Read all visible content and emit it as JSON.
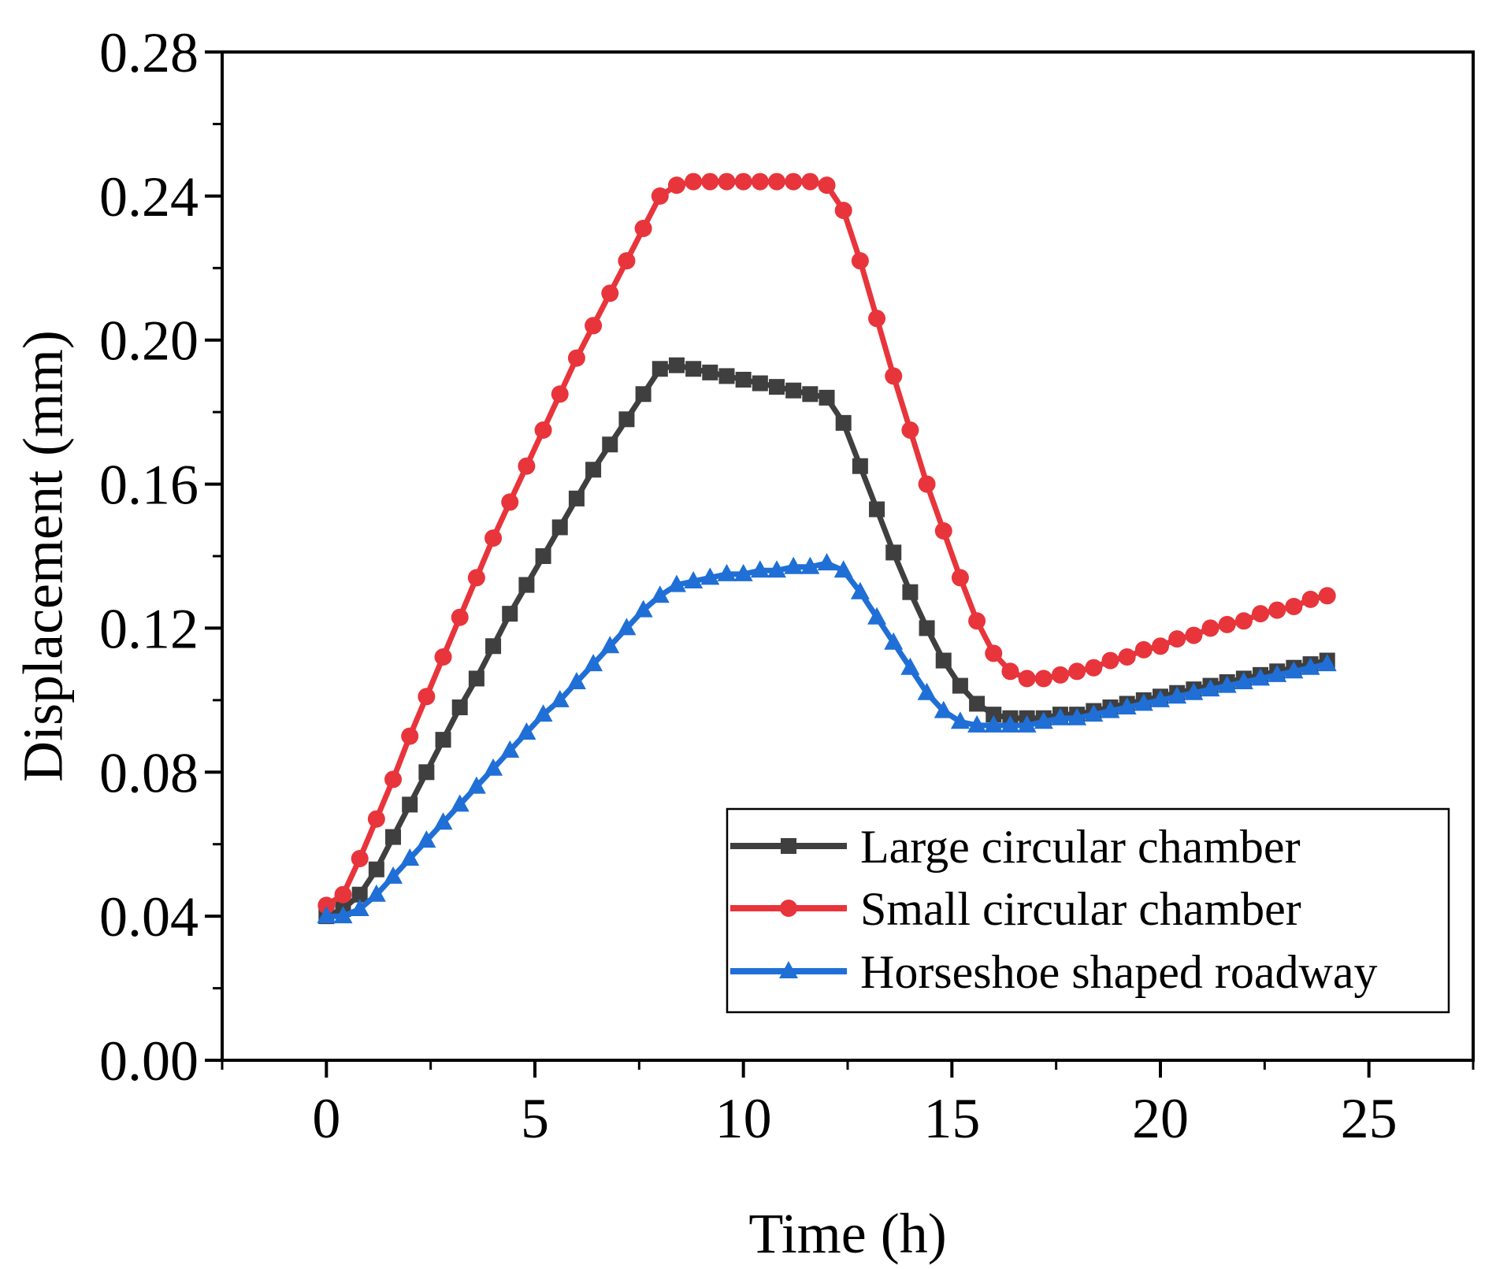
{
  "chart_data": {
    "type": "line",
    "title": "",
    "xlabel": "Time (h)",
    "ylabel": "Displacement (mm)",
    "xlim": [
      -2.5,
      27.5
    ],
    "ylim": [
      0.0,
      0.28
    ],
    "xticks": [
      0,
      5,
      10,
      15,
      20,
      25
    ],
    "xtick_labels": [
      "0",
      "5",
      "10",
      "15",
      "20",
      "25"
    ],
    "yticks": [
      0.0,
      0.04,
      0.08,
      0.12,
      0.16,
      0.2,
      0.24,
      0.28
    ],
    "ytick_labels": [
      "0.00",
      "0.04",
      "0.08",
      "0.12",
      "0.16",
      "0.20",
      "0.24",
      "0.28"
    ],
    "grid": false,
    "legend_position": "bottom-right",
    "x": [
      0.0,
      0.4,
      0.8,
      1.2,
      1.6,
      2.0,
      2.4,
      2.8,
      3.2,
      3.6,
      4.0,
      4.4,
      4.8,
      5.2,
      5.6,
      6.0,
      6.4,
      6.8,
      7.2,
      7.6,
      8.0,
      8.4,
      8.8,
      9.2,
      9.6,
      10.0,
      10.4,
      10.8,
      11.2,
      11.6,
      12.0,
      12.4,
      12.8,
      13.2,
      13.6,
      14.0,
      14.4,
      14.8,
      15.2,
      15.6,
      16.0,
      16.4,
      16.8,
      17.2,
      17.6,
      18.0,
      18.4,
      18.8,
      19.2,
      19.6,
      20.0,
      20.4,
      20.8,
      21.2,
      21.6,
      22.0,
      22.4,
      22.8,
      23.2,
      23.6,
      24.0
    ],
    "series": [
      {
        "name": "Large circular chamber",
        "color": "#3f3f3f",
        "marker": "square",
        "values": [
          0.04,
          0.042,
          0.046,
          0.053,
          0.062,
          0.071,
          0.08,
          0.089,
          0.098,
          0.106,
          0.115,
          0.124,
          0.132,
          0.14,
          0.148,
          0.156,
          0.164,
          0.171,
          0.178,
          0.185,
          0.192,
          0.193,
          0.192,
          0.191,
          0.19,
          0.189,
          0.188,
          0.187,
          0.186,
          0.185,
          0.184,
          0.177,
          0.165,
          0.153,
          0.141,
          0.13,
          0.12,
          0.111,
          0.104,
          0.099,
          0.096,
          0.095,
          0.095,
          0.095,
          0.096,
          0.096,
          0.097,
          0.098,
          0.099,
          0.1,
          0.101,
          0.102,
          0.103,
          0.104,
          0.105,
          0.106,
          0.107,
          0.108,
          0.109,
          0.11,
          0.111
        ]
      },
      {
        "name": "Small circular chamber",
        "color": "#e8343b",
        "marker": "circle",
        "values": [
          0.043,
          0.046,
          0.056,
          0.067,
          0.078,
          0.09,
          0.101,
          0.112,
          0.123,
          0.134,
          0.145,
          0.155,
          0.165,
          0.175,
          0.185,
          0.195,
          0.204,
          0.213,
          0.222,
          0.231,
          0.24,
          0.243,
          0.244,
          0.244,
          0.244,
          0.244,
          0.244,
          0.244,
          0.244,
          0.244,
          0.243,
          0.236,
          0.222,
          0.206,
          0.19,
          0.175,
          0.16,
          0.147,
          0.134,
          0.122,
          0.113,
          0.108,
          0.106,
          0.106,
          0.107,
          0.108,
          0.109,
          0.111,
          0.112,
          0.114,
          0.115,
          0.117,
          0.118,
          0.12,
          0.121,
          0.122,
          0.124,
          0.125,
          0.126,
          0.128,
          0.129
        ]
      },
      {
        "name": "Horseshoe shaped roadway",
        "color": "#1f6fd6",
        "marker": "triangle",
        "values": [
          0.04,
          0.04,
          0.042,
          0.046,
          0.051,
          0.056,
          0.061,
          0.066,
          0.071,
          0.076,
          0.081,
          0.086,
          0.091,
          0.096,
          0.1,
          0.105,
          0.11,
          0.115,
          0.12,
          0.125,
          0.129,
          0.132,
          0.133,
          0.134,
          0.135,
          0.135,
          0.136,
          0.136,
          0.137,
          0.137,
          0.138,
          0.136,
          0.13,
          0.123,
          0.116,
          0.109,
          0.102,
          0.097,
          0.094,
          0.093,
          0.093,
          0.093,
          0.093,
          0.094,
          0.095,
          0.095,
          0.096,
          0.097,
          0.098,
          0.099,
          0.1,
          0.101,
          0.102,
          0.103,
          0.104,
          0.105,
          0.106,
          0.107,
          0.108,
          0.109,
          0.11
        ]
      }
    ]
  }
}
